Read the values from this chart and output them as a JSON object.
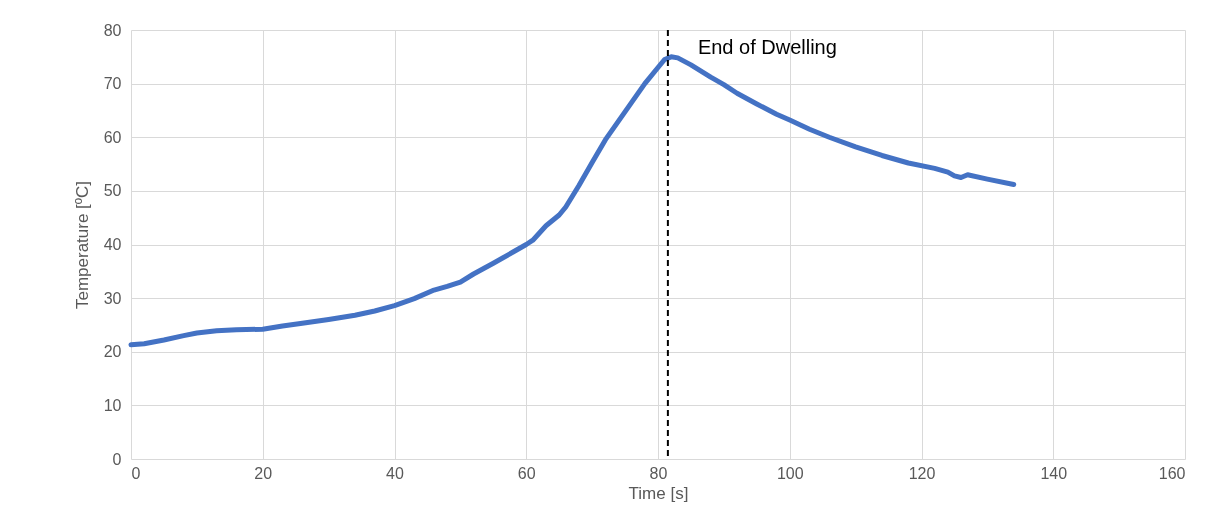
{
  "chart_data": {
    "type": "line",
    "xlabel": "Time [s]",
    "ylabel": "Temperature [ºC]",
    "series": [
      {
        "color": "#4472c4",
        "x": [
          0,
          2,
          5,
          8,
          10,
          13,
          16,
          20,
          23,
          26,
          30,
          34,
          37,
          40,
          43,
          46,
          48,
          50,
          52,
          55,
          58,
          60,
          61,
          63,
          65,
          66,
          68,
          70,
          72,
          74,
          76,
          78,
          80,
          81,
          82,
          83,
          85,
          88,
          90,
          92,
          95,
          98,
          100,
          103,
          106,
          110,
          114,
          118,
          122,
          124,
          125,
          126,
          127,
          130,
          134
        ],
        "values": [
          21.3,
          21.5,
          22.2,
          23,
          23.5,
          23.9,
          24.1,
          24.2,
          24.8,
          25.3,
          26,
          26.8,
          27.6,
          28.6,
          29.9,
          31.5,
          32.2,
          33,
          34.5,
          36.5,
          38.6,
          40,
          40.8,
          43.5,
          45.5,
          47,
          51,
          55.3,
          59.5,
          63,
          66.5,
          70,
          73,
          74.5,
          75,
          74.8,
          73.5,
          71.2,
          69.8,
          68.2,
          66.2,
          64.3,
          63.2,
          61.5,
          60,
          58.2,
          56.6,
          55.2,
          54.2,
          53.5,
          52.8,
          52.5,
          53,
          52.2,
          51.2
        ]
      }
    ],
    "xlim": [
      0,
      160
    ],
    "xticks": [
      0,
      20,
      40,
      60,
      80,
      100,
      120,
      140,
      160
    ],
    "ylim": [
      0,
      80
    ],
    "yticks": [
      0,
      10,
      20,
      30,
      40,
      50,
      60,
      70,
      80
    ],
    "grid": true,
    "line_style": "solid",
    "ref_lines": [
      {
        "axis": "x",
        "value": 81.5,
        "label": "End of Dwelling",
        "color": "#000000",
        "line_style": "dashed"
      }
    ]
  }
}
